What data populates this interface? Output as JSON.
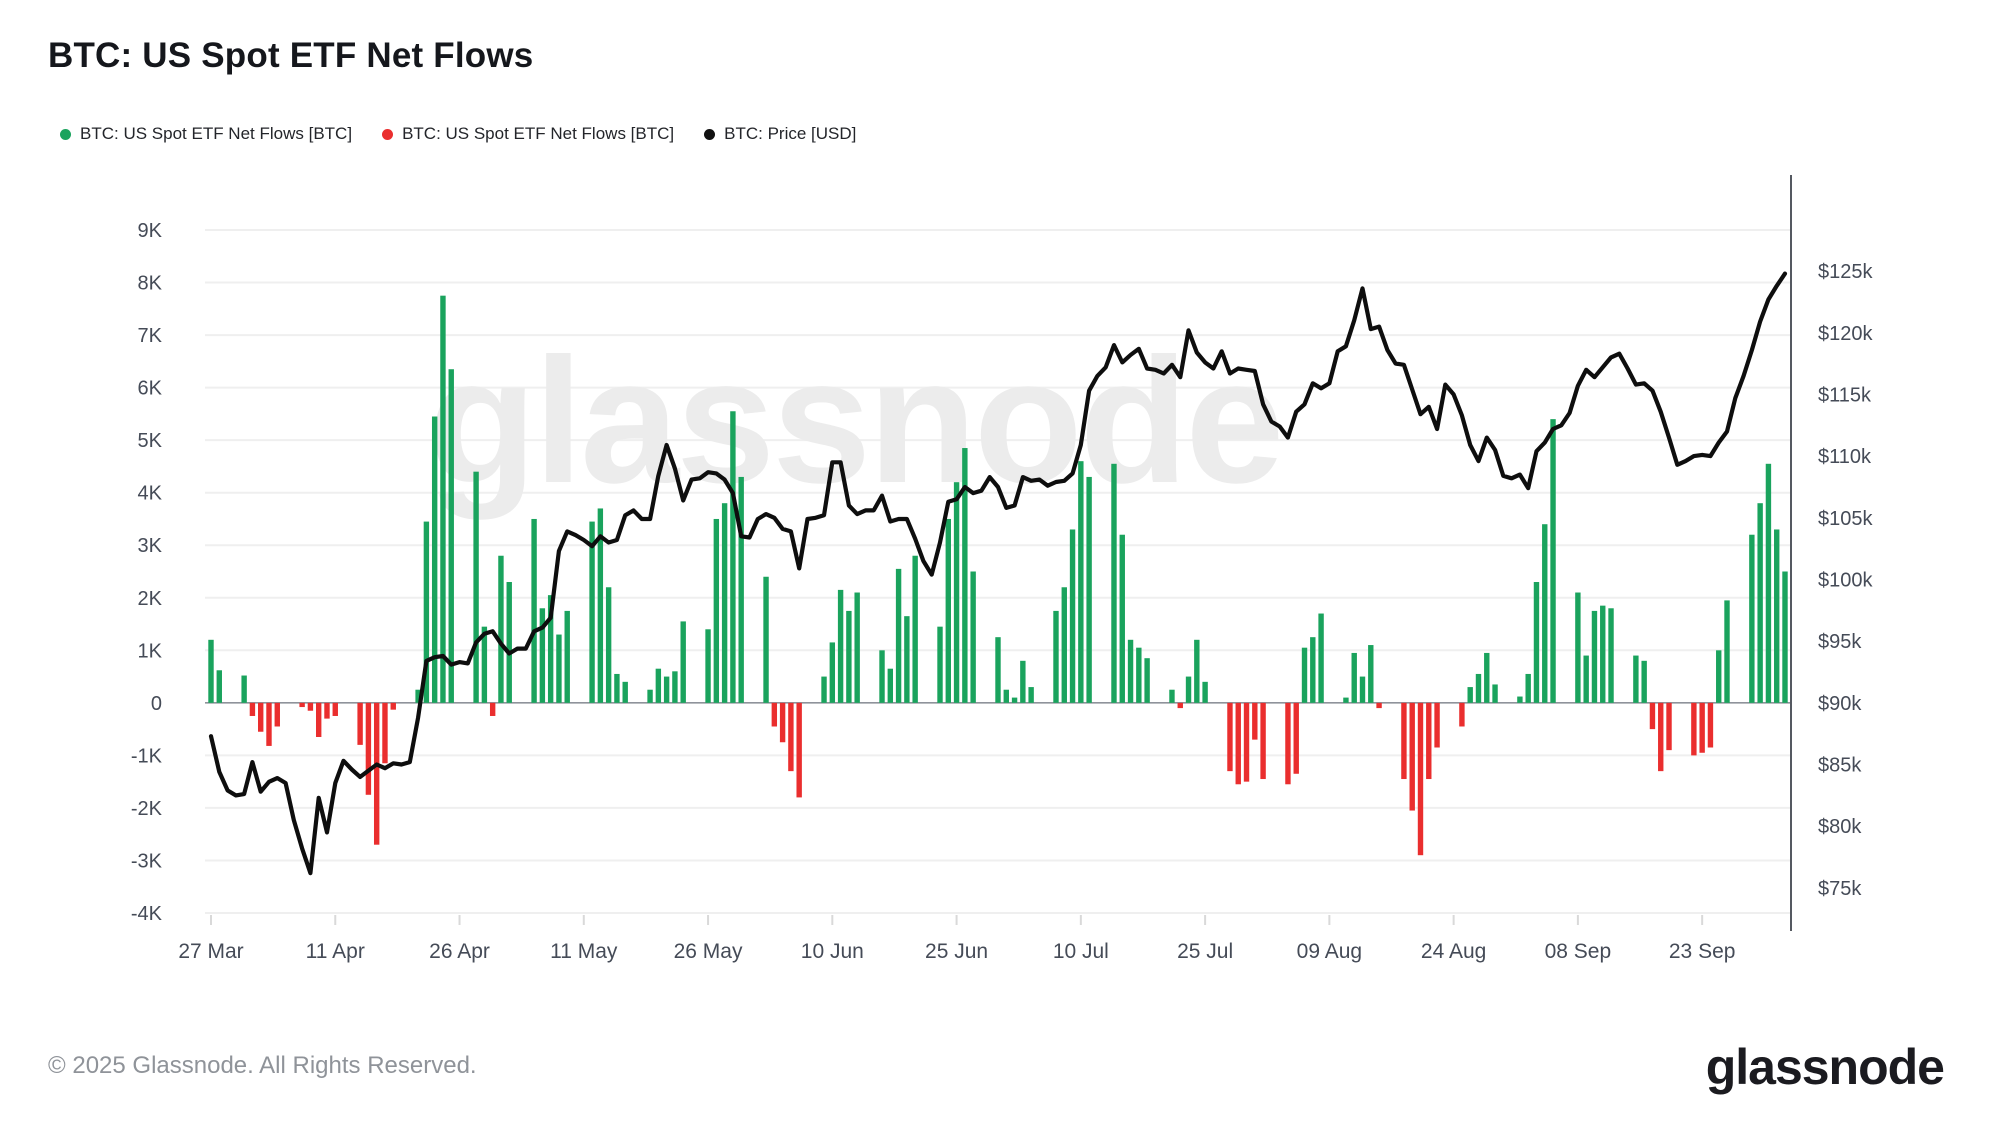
{
  "title": "BTC: US Spot ETF Net Flows",
  "legend": {
    "items": [
      {
        "label": "BTC: US Spot ETF Net Flows [BTC]",
        "color": "#1aa35d"
      },
      {
        "label": "BTC: US Spot ETF Net Flows [BTC]",
        "color": "#ea2e2e"
      },
      {
        "label": "BTC: Price [USD]",
        "color": "#111111"
      }
    ]
  },
  "watermark": "glassnode",
  "footer": {
    "copyright": "© 2025 Glassnode. All Rights Reserved.",
    "logo": "glassnode"
  },
  "colors": {
    "positive_bar": "#1aa35d",
    "negative_bar": "#ea2e2e",
    "price_line": "#0e0e0e",
    "grid": "#efefef",
    "zero_line": "#8f939b",
    "axis_line": "#555961",
    "axis_text": "#454b57",
    "tick_mark": "#d9d9d9"
  },
  "chart_data": {
    "type": "bar+line",
    "title": "BTC: US Spot ETF Net Flows",
    "frequency": "daily",
    "start_date": "27 Mar",
    "x_tick_interval_days": 15,
    "x_tick_labels": [
      "27 Mar",
      "11 Apr",
      "26 Apr",
      "11 May",
      "26 May",
      "10 Jun",
      "25 Jun",
      "10 Jul",
      "25 Jul",
      "09 Aug",
      "24 Aug",
      "08 Sep",
      "23 Sep"
    ],
    "left_axis": {
      "unit": "K BTC",
      "min": -4,
      "max": 9,
      "step": 1,
      "tick_labels": [
        "9K",
        "8K",
        "7K",
        "6K",
        "5K",
        "4K",
        "3K",
        "2K",
        "1K",
        "0",
        "-1K",
        "-2K",
        "-3K",
        "-4K"
      ]
    },
    "right_axis": {
      "unit": "USD",
      "min": 75,
      "max": 125,
      "step": 5,
      "tick_labels": [
        "$125k",
        "$120k",
        "$115k",
        "$110k",
        "$105k",
        "$100k",
        "$95k",
        "$90k",
        "$85k",
        "$80k",
        "$75k"
      ]
    },
    "legend_position": "top-left",
    "grid": "horizontal",
    "series": [
      {
        "name": "BTC: US Spot ETF Net Flows [BTC]",
        "type": "bar",
        "unit": "K BTC",
        "values": [
          1.2,
          0.62,
          0,
          0,
          0.52,
          -0.25,
          -0.55,
          -0.82,
          -0.45,
          0,
          0,
          -0.08,
          -0.15,
          -0.65,
          -0.3,
          -0.25,
          0,
          0,
          -0.8,
          -1.75,
          -2.7,
          -1.15,
          -0.13,
          0,
          0,
          0.25,
          3.45,
          5.45,
          7.75,
          6.35,
          0,
          0,
          4.4,
          1.45,
          -0.25,
          2.8,
          2.3,
          0,
          0,
          3.5,
          1.8,
          2.05,
          1.3,
          1.75,
          0,
          0,
          3.45,
          3.7,
          2.2,
          0.55,
          0.4,
          0,
          0,
          0.25,
          0.65,
          0.5,
          0.6,
          1.55,
          0,
          0,
          1.4,
          3.5,
          3.8,
          5.55,
          4.3,
          0,
          0,
          2.4,
          -0.45,
          -0.75,
          -1.3,
          -1.8,
          0,
          0,
          0.5,
          1.15,
          2.15,
          1.75,
          2.1,
          0,
          0,
          1.0,
          0.65,
          2.55,
          1.65,
          2.8,
          0,
          0,
          1.45,
          3.5,
          4.2,
          4.85,
          2.5,
          0,
          0,
          1.25,
          0.25,
          0.1,
          0.8,
          0.3,
          0,
          0,
          1.75,
          2.2,
          3.3,
          4.6,
          4.3,
          0,
          0,
          4.55,
          3.2,
          1.2,
          1.05,
          0.85,
          0,
          0,
          0.25,
          -0.1,
          0.5,
          1.2,
          0.4,
          0,
          0,
          -1.3,
          -1.55,
          -1.5,
          -0.7,
          -1.45,
          0,
          0,
          -1.55,
          -1.35,
          1.05,
          1.25,
          1.7,
          0,
          0,
          0.1,
          0.95,
          0.5,
          1.1,
          -0.1,
          0,
          0,
          -1.45,
          -2.05,
          -2.9,
          -1.45,
          -0.85,
          0,
          0,
          -0.45,
          0.3,
          0.55,
          0.95,
          0.35,
          0,
          0,
          0.12,
          0.55,
          2.3,
          3.4,
          5.4,
          0,
          0,
          2.1,
          0.9,
          1.75,
          1.85,
          1.8,
          0,
          0,
          0.9,
          0.8,
          -0.5,
          -1.3,
          -0.9,
          0,
          0,
          -1.0,
          -0.95,
          -0.85,
          1.0,
          1.95,
          0,
          0,
          3.2,
          3.8,
          4.55,
          3.3,
          2.5
        ]
      },
      {
        "name": "BTC: Price [USD]",
        "type": "line",
        "unit": "thousand USD",
        "values": [
          87.3,
          84.4,
          82.9,
          82.5,
          82.6,
          85.2,
          82.8,
          83.6,
          83.9,
          83.5,
          80.5,
          78.2,
          76.2,
          82.3,
          79.5,
          83.5,
          85.3,
          84.6,
          84.0,
          84.5,
          85.0,
          84.7,
          85.1,
          85.0,
          85.2,
          88.8,
          93.4,
          93.7,
          93.8,
          93.1,
          93.3,
          93.2,
          94.9,
          95.6,
          95.8,
          94.8,
          94.0,
          94.4,
          94.4,
          95.8,
          96.1,
          96.9,
          102.3,
          103.9,
          103.6,
          103.2,
          102.7,
          103.5,
          103.0,
          103.2,
          105.2,
          105.6,
          104.9,
          104.9,
          108.4,
          110.9,
          109.0,
          106.4,
          108.1,
          108.2,
          108.7,
          108.6,
          108.1,
          107.0,
          103.5,
          103.4,
          104.9,
          105.3,
          105.0,
          104.1,
          103.9,
          100.9,
          104.9,
          105.0,
          105.2,
          109.5,
          109.5,
          106.0,
          105.3,
          105.6,
          105.6,
          106.8,
          104.7,
          104.9,
          104.9,
          103.3,
          101.5,
          100.4,
          103.0,
          106.3,
          106.5,
          107.5,
          107.0,
          107.2,
          108.3,
          107.5,
          105.8,
          106.0,
          108.3,
          108.0,
          108.1,
          107.6,
          107.9,
          108.0,
          108.6,
          110.9,
          115.3,
          116.5,
          117.2,
          119.0,
          117.6,
          118.2,
          118.7,
          117.1,
          117.0,
          116.7,
          117.4,
          116.4,
          120.2,
          118.4,
          117.6,
          117.1,
          118.5,
          116.7,
          117.1,
          117.0,
          116.9,
          114.2,
          112.8,
          112.4,
          111.5,
          113.6,
          114.2,
          115.9,
          115.5,
          115.9,
          118.5,
          118.9,
          121.0,
          123.6,
          120.3,
          120.5,
          118.6,
          117.5,
          117.4,
          115.4,
          113.4,
          114.0,
          112.2,
          115.8,
          115.0,
          113.3,
          110.9,
          109.6,
          111.5,
          110.5,
          108.4,
          108.2,
          108.5,
          107.4,
          110.4,
          111.1,
          112.2,
          112.5,
          113.5,
          115.7,
          117.0,
          116.4,
          117.2,
          118.0,
          118.3,
          117.1,
          115.8,
          115.9,
          115.3,
          113.6,
          111.5,
          109.3,
          109.6,
          110.0,
          110.1,
          110.0,
          111.1,
          112.0,
          114.7,
          116.5,
          118.6,
          120.9,
          122.7,
          123.8,
          124.8
        ]
      }
    ]
  }
}
